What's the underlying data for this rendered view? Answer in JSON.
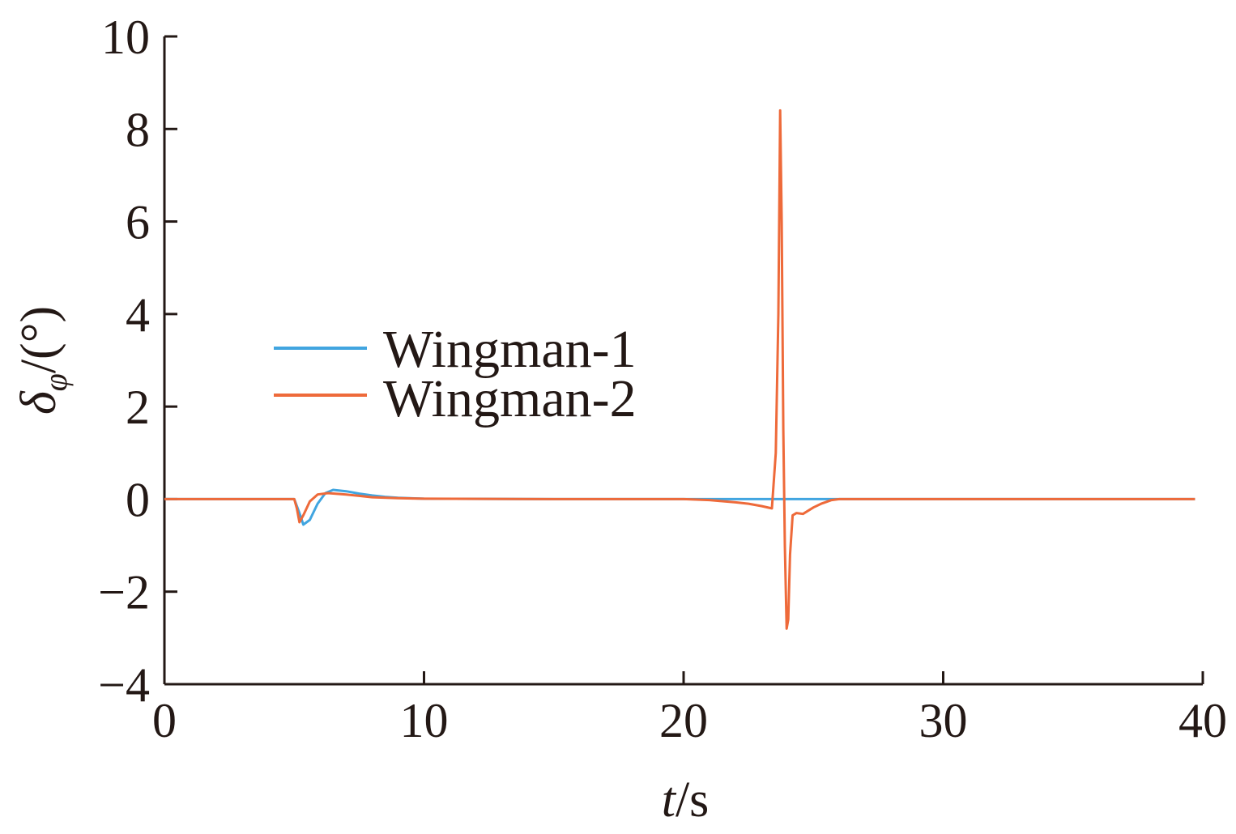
{
  "chart_data": {
    "type": "line",
    "xlabel_italic": "t",
    "xlabel_unit": "/s",
    "ylabel_symbol": "δ",
    "ylabel_subscript": "φ",
    "ylabel_unit": "/(°)",
    "xlim": [
      0,
      40
    ],
    "ylim": [
      -4,
      10
    ],
    "xticks": [
      0,
      10,
      20,
      30,
      40
    ],
    "yticks": [
      -4,
      -2,
      0,
      2,
      4,
      6,
      8,
      10
    ],
    "ytick_labels": [
      "−4",
      "−2",
      "0",
      "2",
      "4",
      "6",
      "8",
      "10"
    ],
    "grid": false,
    "legend_position": "center-left",
    "series": [
      {
        "name": "Wingman-1",
        "color": "#41a5e0",
        "x": [
          0,
          5.0,
          5.2,
          5.35,
          5.6,
          5.9,
          6.2,
          6.5,
          7.0,
          7.5,
          8.0,
          8.5,
          9.0,
          10,
          15,
          20,
          25,
          30,
          35,
          39.7
        ],
        "y": [
          0,
          0,
          -0.3,
          -0.55,
          -0.45,
          -0.1,
          0.13,
          0.2,
          0.17,
          0.12,
          0.08,
          0.05,
          0.03,
          0.01,
          0,
          0,
          0,
          0,
          0,
          0
        ]
      },
      {
        "name": "Wingman-2",
        "color": "#ee6a3a",
        "x": [
          0,
          5.0,
          5.1,
          5.2,
          5.35,
          5.6,
          5.9,
          6.3,
          7.0,
          7.5,
          8.0,
          9.0,
          10,
          15,
          20,
          21,
          22,
          22.5,
          23.0,
          23.4,
          23.55,
          23.65,
          23.72,
          23.78,
          23.84,
          23.9,
          23.97,
          24.03,
          24.1,
          24.2,
          24.35,
          24.6,
          25.0,
          25.3,
          25.7,
          26,
          30,
          35,
          39.7
        ],
        "y": [
          0,
          0,
          -0.2,
          -0.5,
          -0.35,
          -0.05,
          0.1,
          0.13,
          0.1,
          0.07,
          0.04,
          0.02,
          0.01,
          0,
          0,
          -0.02,
          -0.07,
          -0.1,
          -0.15,
          -0.2,
          1.0,
          4.0,
          8.4,
          6.0,
          1.5,
          -1.0,
          -2.8,
          -2.6,
          -1.2,
          -0.35,
          -0.3,
          -0.32,
          -0.18,
          -0.1,
          -0.02,
          0,
          0,
          0,
          0
        ]
      }
    ]
  }
}
